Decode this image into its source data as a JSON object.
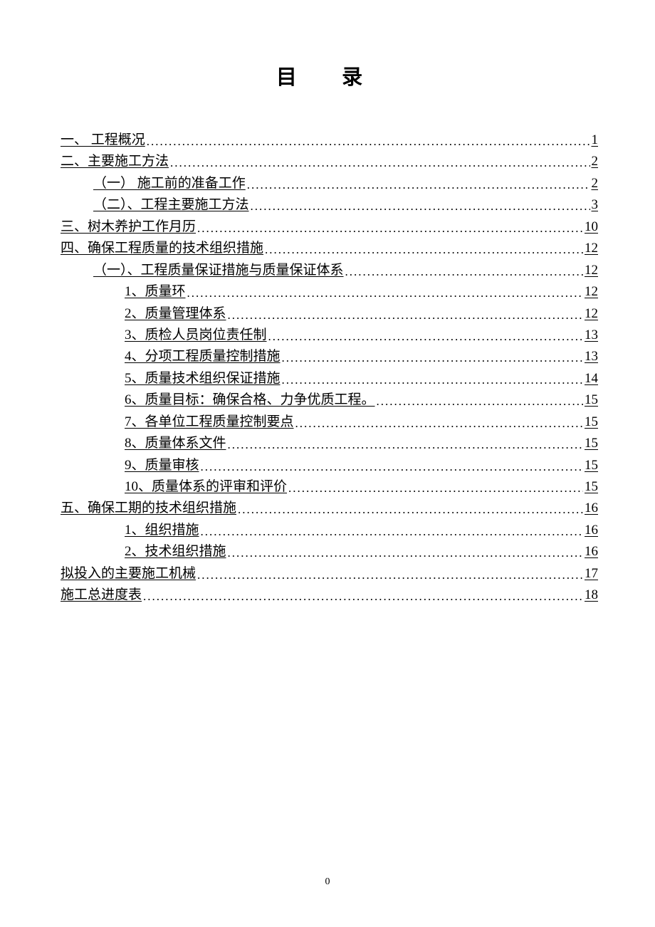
{
  "title": "目 录",
  "page_number": "0",
  "entries": [
    {
      "text": "一、 工程概况",
      "page": "1",
      "indent": 0
    },
    {
      "text": "二、主要施工方法",
      "page": "2",
      "indent": 0
    },
    {
      "text": "（一） 施工前的准备工作",
      "page": "2",
      "indent": 1
    },
    {
      "text": "（二）、工程主要施工方法",
      "page": "3",
      "indent": 1
    },
    {
      "text": "三、树木养护工作月历",
      "page": "10",
      "indent": 0
    },
    {
      "text": "四、确保工程质量的技术组织措施",
      "page": "12",
      "indent": 0
    },
    {
      "text": "（一）、工程质量保证措施与质量保证体系",
      "page": "12",
      "indent": 1
    },
    {
      "text": "1、质量环",
      "page": "12",
      "indent": 2
    },
    {
      "text": "2、质量管理体系",
      "page": "12",
      "indent": 2
    },
    {
      "text": "3、质检人员岗位责任制",
      "page": "13",
      "indent": 2
    },
    {
      "text": "4、分项工程质量控制措施",
      "page": "13",
      "indent": 2
    },
    {
      "text": "5、质量技术组织保证措施",
      "page": "14",
      "indent": 2
    },
    {
      "text": "6、质量目标：确保合格、力争优质工程。",
      "page": "15",
      "indent": 2
    },
    {
      "text": "7、各单位工程质量控制要点",
      "page": "15",
      "indent": 2
    },
    {
      "text": "8、质量体系文件",
      "page": "15",
      "indent": 2
    },
    {
      "text": "9、质量审核",
      "page": "15",
      "indent": 2
    },
    {
      "text": "10、质量体系的评审和评价",
      "page": "15",
      "indent": 2
    },
    {
      "text": "五、确保工期的技术组织措施",
      "page": "16",
      "indent": 0
    },
    {
      "text": "1、组织措施",
      "page": "16",
      "indent": 2
    },
    {
      "text": "2、技术组织措施",
      "page": "16",
      "indent": 2
    },
    {
      "text": "拟投入的主要施工机械",
      "page": "17",
      "indent": 0
    },
    {
      "text": "施工总进度表",
      "page": "18",
      "indent": 0
    }
  ]
}
